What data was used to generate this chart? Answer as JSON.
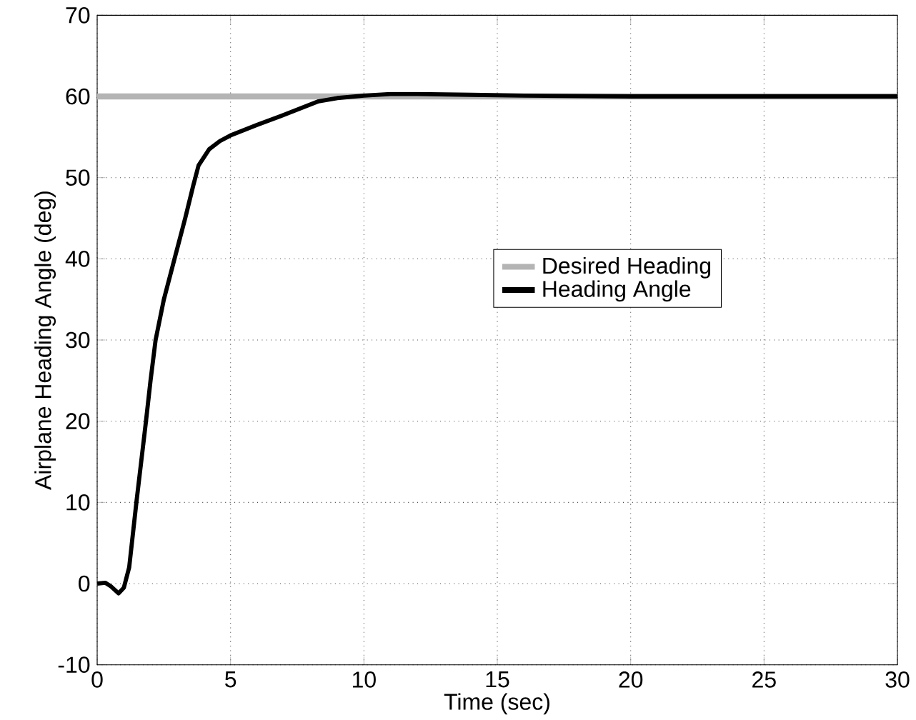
{
  "chart_data": {
    "type": "line",
    "xlabel": "Time (sec)",
    "ylabel": "Airplane Heading Angle (deg)",
    "xlim": [
      0,
      30
    ],
    "ylim": [
      -10,
      70
    ],
    "xticks": [
      0,
      5,
      10,
      15,
      20,
      25,
      30
    ],
    "yticks": [
      -10,
      0,
      10,
      20,
      30,
      40,
      50,
      60,
      70
    ],
    "grid": true,
    "legend": "right",
    "marker": "none",
    "line_style": "solid",
    "series": [
      {
        "name": "Desired Heading",
        "color": "#b4b4b4",
        "x": [
          0,
          30
        ],
        "values": [
          60,
          60
        ]
      },
      {
        "name": "Heading Angle",
        "color": "#000000",
        "x": [
          0,
          0.3,
          0.5,
          0.8,
          1.0,
          1.2,
          1.47,
          1.65,
          1.83,
          2.0,
          2.19,
          2.5,
          2.9,
          3.3,
          3.6,
          3.8,
          4.2,
          4.6,
          5,
          6,
          6.9,
          8.3,
          9,
          10,
          11,
          12,
          14,
          16,
          20,
          30
        ],
        "values": [
          0,
          0.1,
          -0.3,
          -1.2,
          -0.5,
          2,
          10,
          15,
          20,
          25,
          30,
          35,
          40,
          45,
          49,
          51.5,
          53.5,
          54.5,
          55.2,
          56.5,
          57.6,
          59.4,
          59.8,
          60.1,
          60.3,
          60.3,
          60.2,
          60.1,
          60,
          60
        ]
      }
    ]
  }
}
